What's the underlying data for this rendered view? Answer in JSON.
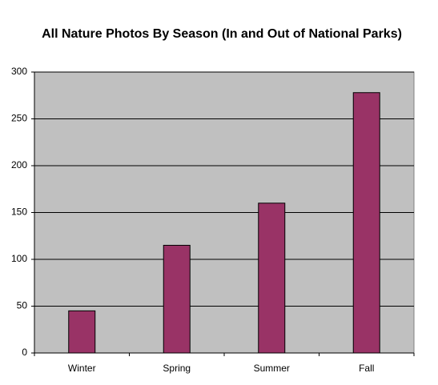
{
  "chart_data": {
    "type": "bar",
    "title": "All Nature Photos By Season (In and Out of National Parks)",
    "categories": [
      "Winter",
      "Spring",
      "Summer",
      "Fall"
    ],
    "values": [
      45,
      115,
      160,
      278
    ],
    "color": "#993366",
    "ylim": [
      0,
      300
    ],
    "yticks": [
      0,
      50,
      100,
      150,
      200,
      250,
      300
    ],
    "grid": true
  }
}
